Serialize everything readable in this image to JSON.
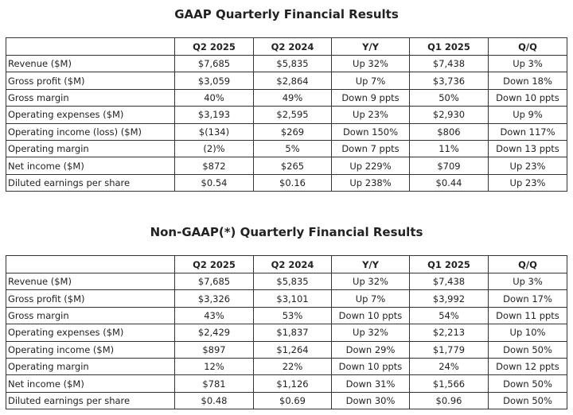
{
  "tables": [
    {
      "title": "GAAP Quarterly Financial Results",
      "header": [
        "Q2 2025",
        "Q2 2024",
        "Y/Y",
        "Q1 2025",
        "Q/Q"
      ],
      "rows": [
        [
          "Revenue ($M)",
          "$7,685",
          "$5,835",
          "Up 32%",
          "$7,438",
          "Up 3%"
        ],
        [
          "Gross profit ($M)",
          "$3,059",
          "$2,864",
          "Up 7%",
          "$3,736",
          "Down 18%"
        ],
        [
          "Gross margin",
          "40%",
          "49%",
          "Down 9 ppts",
          "50%",
          "Down 10 ppts"
        ],
        [
          "Operating expenses ($M)",
          "$3,193",
          "$2,595",
          "Up 23%",
          "$2,930",
          "Up 9%"
        ],
        [
          "Operating income (loss) ($M)",
          "$(134)",
          "$269",
          "Down 150%",
          "$806",
          "Down 117%"
        ],
        [
          "Operating margin",
          "(2)%",
          "5%",
          "Down 7 ppts",
          "11%",
          "Down 13 ppts"
        ],
        [
          "Net income ($M)",
          "$872",
          "$265",
          "Up 229%",
          "$709",
          "Up 23%"
        ],
        [
          "Diluted earnings per share",
          "$0.54",
          "$0.16",
          "Up 238%",
          "$0.44",
          "Up 23%"
        ]
      ]
    },
    {
      "title": "Non-GAAP(*) Quarterly Financial Results",
      "header": [
        "Q2 2025",
        "Q2 2024",
        "Y/Y",
        "Q1 2025",
        "Q/Q"
      ],
      "rows": [
        [
          "Revenue ($M)",
          "$7,685",
          "$5,835",
          "Up 32%",
          "$7,438",
          "Up 3%"
        ],
        [
          "Gross profit ($M)",
          "$3,326",
          "$3,101",
          "Up 7%",
          "$3,992",
          "Down 17%"
        ],
        [
          "Gross margin",
          "43%",
          "53%",
          "Down 10 ppts",
          "54%",
          "Down 11 ppts"
        ],
        [
          "Operating expenses ($M)",
          "$2,429",
          "$1,837",
          "Up 32%",
          "$2,213",
          "Up 10%"
        ],
        [
          "Operating income ($M)",
          "$897",
          "$1,264",
          "Down 29%",
          "$1,779",
          "Down 50%"
        ],
        [
          "Operating margin",
          "12%",
          "22%",
          "Down 10 ppts",
          "24%",
          "Down 12 ppts"
        ],
        [
          "Net income ($M)",
          "$781",
          "$1,126",
          "Down 31%",
          "$1,566",
          "Down 50%"
        ],
        [
          "Diluted earnings per share",
          "$0.48",
          "$0.69",
          "Down 30%",
          "$0.96",
          "Down 50%"
        ]
      ]
    }
  ]
}
